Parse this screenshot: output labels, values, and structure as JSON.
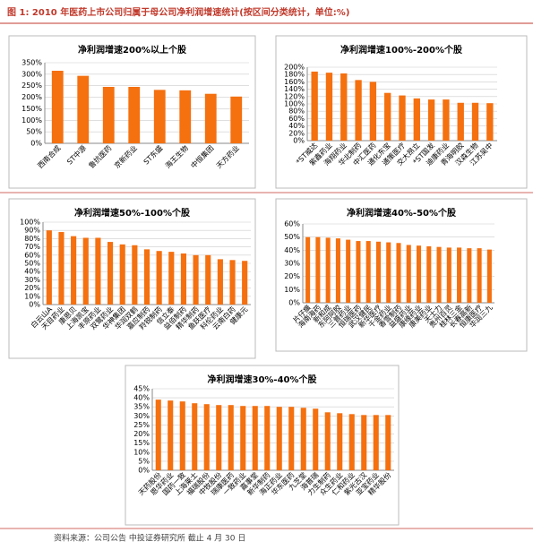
{
  "page": {
    "title": "图 1: 2010 年医药上市公司归属于母公司净利润增速统计(按区间分类统计，单位:%)",
    "source": "资料来源：公司公告 中投证券研究所 截止 4 月 30 日"
  },
  "chart_data": [
    {
      "type": "bar",
      "title": "净利润增速200%以上个股",
      "color": "#f5700f",
      "grid": true,
      "categories": [
        "西南合成",
        "ST中源",
        "鲁抗医药",
        "京新药业",
        "ST东盛",
        "海王生物",
        "中恒集团",
        "天方药业"
      ],
      "values": [
        315,
        293,
        245,
        245,
        232,
        230,
        215,
        203
      ],
      "ylim": [
        0,
        350
      ],
      "yticks": [
        {
          "value": 0,
          "label": "0%"
        },
        {
          "value": 50,
          "label": "50%"
        },
        {
          "value": 100,
          "label": "100%"
        },
        {
          "value": 150,
          "label": "150%"
        },
        {
          "value": 200,
          "label": "200%"
        },
        {
          "value": 250,
          "label": "250%"
        },
        {
          "value": 300,
          "label": "300%"
        },
        {
          "value": 350,
          "label": "350%"
        }
      ]
    },
    {
      "type": "bar",
      "title": "净利润增速100%-200%个股",
      "color": "#f5700f",
      "grid": true,
      "categories": [
        "*ST威达",
        "紫鑫药业",
        "海翔药业",
        "华北制药",
        "中汇医药",
        "通化东宝",
        "通策医疗",
        "交大昂立",
        "*ST国发",
        "迪康药业",
        "青海明胶",
        "汉森生物",
        "江苏吴中"
      ],
      "values": [
        188,
        185,
        183,
        165,
        160,
        130,
        123,
        115,
        112,
        112,
        103,
        103,
        102
      ],
      "ylim": [
        0,
        200
      ],
      "yticks": [
        {
          "value": 0,
          "label": "0%"
        },
        {
          "value": 20,
          "label": "20%"
        },
        {
          "value": 40,
          "label": "40%"
        },
        {
          "value": 60,
          "label": "60%"
        },
        {
          "value": 80,
          "label": "80%"
        },
        {
          "value": 100,
          "label": "100%"
        },
        {
          "value": 120,
          "label": "120%"
        },
        {
          "value": 140,
          "label": "140%"
        },
        {
          "value": 160,
          "label": "160%"
        },
        {
          "value": 180,
          "label": "180%"
        },
        {
          "value": 200,
          "label": "200%"
        }
      ]
    },
    {
      "type": "bar",
      "title": "净利润增速50%-100%个股",
      "color": "#f5700f",
      "grid": true,
      "categories": [
        "白云山A",
        "天目药业",
        "康恩贝",
        "上海凯宝",
        "丰原药业",
        "双鹭药业",
        "华神集团",
        "华润双鹤",
        "嘉应制药",
        "羚锐制药",
        "信立泰",
        "益佰制药",
        "精华制药",
        "鱼跃医疗",
        "科伦药业",
        "云南白药",
        "健康元"
      ],
      "values": [
        90,
        88,
        83,
        81,
        81,
        76,
        73,
        72,
        67,
        65,
        64,
        62,
        60,
        60,
        55,
        54,
        53
      ],
      "ylim": [
        0,
        100
      ],
      "yticks": [
        {
          "value": 0,
          "label": "0%"
        },
        {
          "value": 10,
          "label": "10%"
        },
        {
          "value": 20,
          "label": "20%"
        },
        {
          "value": 30,
          "label": "30%"
        },
        {
          "value": 40,
          "label": "40%"
        },
        {
          "value": 50,
          "label": "50%"
        },
        {
          "value": 60,
          "label": "60%"
        },
        {
          "value": 70,
          "label": "70%"
        },
        {
          "value": 80,
          "label": "80%"
        },
        {
          "value": 90,
          "label": "90%"
        },
        {
          "value": 100,
          "label": "100%"
        }
      ]
    },
    {
      "type": "bar",
      "title": "净利润增速40%-50%个股",
      "color": "#f5700f",
      "grid": true,
      "categories": [
        "片仔癀",
        "海南海药",
        "新和成",
        "东阿阿胶",
        "三普药业",
        "恒瑞医药",
        "武汉健民",
        "新华医疗",
        "千金药业",
        "香雪制药",
        "益盛药业",
        "康缘药业",
        "康美药业",
        "天士力",
        "贵州百灵",
        "桂林三金",
        "长春高新",
        "恒康医疗",
        "华润三九"
      ],
      "values": [
        50,
        50,
        49.5,
        49,
        48,
        47,
        47,
        46.5,
        46,
        45.5,
        44,
        43.5,
        43,
        42.5,
        42,
        42,
        41.5,
        41.5,
        40.5
      ],
      "ylim": [
        0,
        60
      ],
      "yticks": [
        {
          "value": 0,
          "label": "0%"
        },
        {
          "value": 10,
          "label": "10%"
        },
        {
          "value": 20,
          "label": "20%"
        },
        {
          "value": 30,
          "label": "30%"
        },
        {
          "value": 40,
          "label": "40%"
        },
        {
          "value": 50,
          "label": "50%"
        },
        {
          "value": 60,
          "label": "60%"
        }
      ]
    },
    {
      "type": "bar",
      "title": "净利润增速30%-40%个股",
      "color": "#f5700f",
      "grid": true,
      "categories": [
        "天药股份",
        "恩华药业",
        "国药一致",
        "上海莱士",
        "福瑞股份",
        "中牧股份",
        "瑞康医药",
        "一致药业",
        "嘉事堂",
        "新华制药",
        "海正药业",
        "华东医药",
        "九芝堂",
        "海普瑞",
        "力生制药",
        "众生药业",
        "仁和药业",
        "紫光古汉",
        "亚宝药业",
        "精华股份"
      ],
      "values": [
        39,
        38.5,
        38,
        37,
        36.5,
        36,
        36,
        35.5,
        35.5,
        35.5,
        35,
        35,
        34.5,
        34,
        32,
        31.5,
        31,
        30.5,
        30.5,
        30.5
      ],
      "ylim": [
        0,
        45
      ],
      "yticks": [
        {
          "value": 0,
          "label": "0%"
        },
        {
          "value": 5,
          "label": "5%"
        },
        {
          "value": 10,
          "label": "10%"
        },
        {
          "value": 15,
          "label": "15%"
        },
        {
          "value": 20,
          "label": "20%"
        },
        {
          "value": 25,
          "label": "25%"
        },
        {
          "value": 30,
          "label": "30%"
        },
        {
          "value": 35,
          "label": "35%"
        },
        {
          "value": 40,
          "label": "40%"
        },
        {
          "value": 45,
          "label": "45%"
        }
      ]
    }
  ]
}
